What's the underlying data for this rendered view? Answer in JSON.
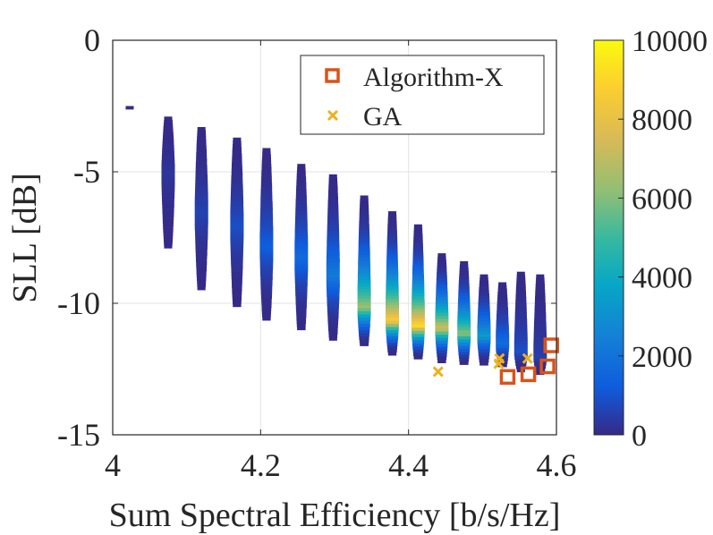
{
  "chart_data": {
    "type": "heatmap",
    "title": "",
    "xlabel": "Sum Spectral Efficiency [b/s/Hz]",
    "ylabel": "SLL [dB]",
    "xlim": [
      4.0,
      4.6
    ],
    "ylim": [
      -15,
      0
    ],
    "x_ticks": [
      4.0,
      4.2,
      4.4,
      4.6
    ],
    "x_tick_labels": [
      "4",
      "4.2",
      "4.4",
      "4.6"
    ],
    "y_ticks": [
      0,
      -5,
      -10,
      -15
    ],
    "y_tick_labels": [
      "0",
      "-5",
      "-10",
      "-15"
    ],
    "grid": true,
    "colorbar": {
      "range": [
        0,
        10000
      ],
      "ticks": [
        0,
        2000,
        4000,
        6000,
        8000,
        10000
      ],
      "tick_labels": [
        "0",
        "2000",
        "4000",
        "6000",
        "8000",
        "10000"
      ],
      "colormap": "parula"
    },
    "density_clusters": [
      {
        "x": 4.023,
        "y_top": -2.5,
        "y_bottom": -2.6,
        "peak_y": -2.55,
        "peak_count": 100
      },
      {
        "x": 4.075,
        "y_top": -2.9,
        "y_bottom": -7.8,
        "peak_y": -5.0,
        "peak_count": 300
      },
      {
        "x": 4.12,
        "y_top": -3.3,
        "y_bottom": -9.4,
        "peak_y": -6.5,
        "peak_count": 600
      },
      {
        "x": 4.168,
        "y_top": -3.7,
        "y_bottom": -10.1,
        "peak_y": -7.0,
        "peak_count": 900
      },
      {
        "x": 4.208,
        "y_top": -4.1,
        "y_bottom": -10.6,
        "peak_y": -7.8,
        "peak_count": 1300
      },
      {
        "x": 4.255,
        "y_top": -4.7,
        "y_bottom": -11.0,
        "peak_y": -8.2,
        "peak_count": 1700
      },
      {
        "x": 4.298,
        "y_top": -5.1,
        "y_bottom": -11.3,
        "peak_y": -8.9,
        "peak_count": 2300
      },
      {
        "x": 4.34,
        "y_top": -5.9,
        "y_bottom": -11.6,
        "peak_y": -10.1,
        "peak_count": 6500
      },
      {
        "x": 4.378,
        "y_top": -6.5,
        "y_bottom": -11.9,
        "peak_y": -10.6,
        "peak_count": 8800
      },
      {
        "x": 4.413,
        "y_top": -7.0,
        "y_bottom": -12.1,
        "peak_y": -10.8,
        "peak_count": 9200
      },
      {
        "x": 4.445,
        "y_top": -8.1,
        "y_bottom": -12.2,
        "peak_y": -10.9,
        "peak_count": 7500
      },
      {
        "x": 4.475,
        "y_top": -8.4,
        "y_bottom": -12.3,
        "peak_y": -11.1,
        "peak_count": 6200
      },
      {
        "x": 4.502,
        "y_top": -8.9,
        "y_bottom": -12.3,
        "peak_y": -11.2,
        "peak_count": 3500
      },
      {
        "x": 4.527,
        "y_top": -9.2,
        "y_bottom": -12.4,
        "peak_y": -11.5,
        "peak_count": 1800
      },
      {
        "x": 4.552,
        "y_top": -8.8,
        "y_bottom": -12.5,
        "peak_y": -11.8,
        "peak_count": 900
      },
      {
        "x": 4.578,
        "y_top": -8.9,
        "y_bottom": -12.6,
        "peak_y": -12.0,
        "peak_count": 500
      }
    ],
    "series": [
      {
        "name": "Algorithm-X",
        "marker": "square",
        "color": "#d95319",
        "x": [
          4.534,
          4.562,
          4.588,
          4.593
        ],
        "y": [
          -12.8,
          -12.7,
          -12.4,
          -11.6
        ]
      },
      {
        "name": "GA",
        "marker": "x",
        "color": "#edb120",
        "x": [
          4.44,
          4.522,
          4.523,
          4.561
        ],
        "y": [
          -12.6,
          -12.3,
          -12.1,
          -12.1
        ]
      }
    ],
    "legend": {
      "location": "top-right",
      "entries": [
        "Algorithm-X",
        "GA"
      ]
    }
  }
}
